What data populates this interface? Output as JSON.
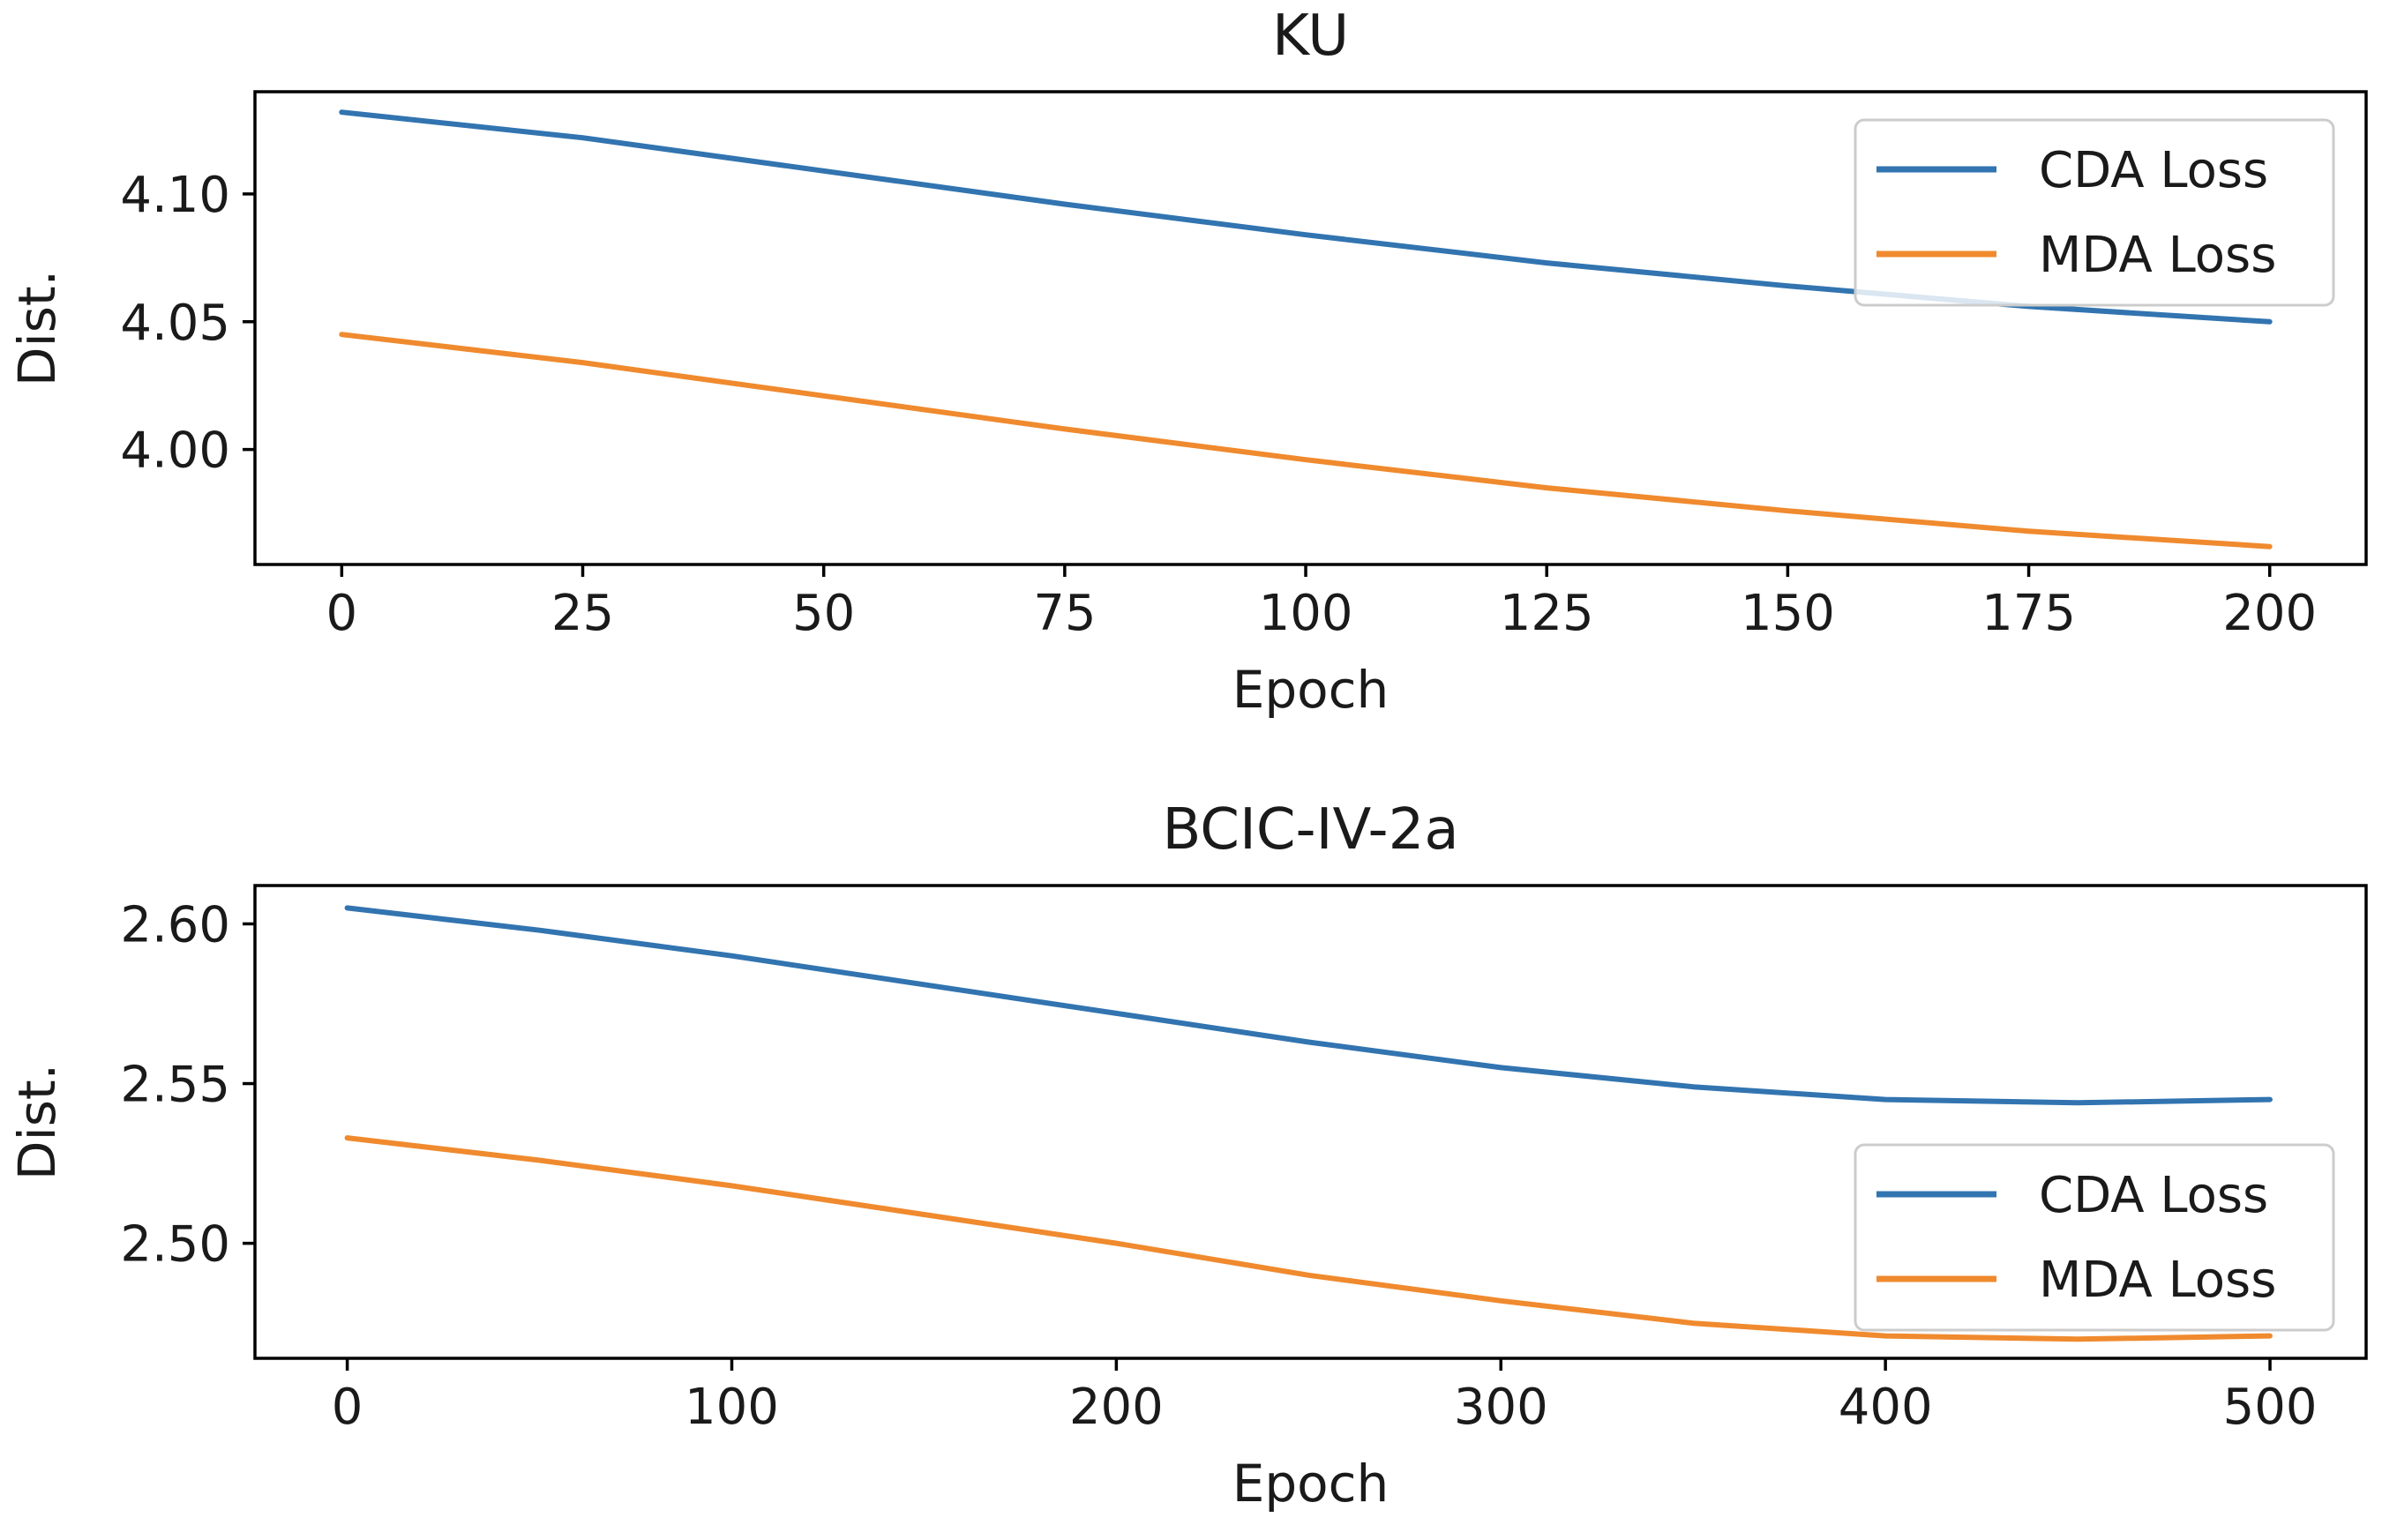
{
  "chart_data": [
    {
      "type": "line",
      "title": "KU",
      "xlabel": "Epoch",
      "ylabel": "Dist.",
      "xlim": [
        -9,
        210
      ],
      "ylim": [
        3.955,
        4.14
      ],
      "xticks": [
        0,
        25,
        50,
        75,
        100,
        125,
        150,
        175,
        200
      ],
      "xtick_labels": [
        "0",
        "25",
        "50",
        "75",
        "100",
        "125",
        "150",
        "175",
        "200"
      ],
      "yticks": [
        4.0,
        4.05,
        4.1
      ],
      "ytick_labels": [
        "4.00",
        "4.05",
        "4.10"
      ],
      "legend_position": "upper-right",
      "grid": false,
      "series": [
        {
          "name": "CDA Loss",
          "color": "#3274b0",
          "x": [
            0,
            25,
            50,
            75,
            100,
            125,
            150,
            175,
            200
          ],
          "y": [
            4.132,
            4.122,
            4.109,
            4.096,
            4.084,
            4.073,
            4.064,
            4.056,
            4.05
          ]
        },
        {
          "name": "MDA Loss",
          "color": "#f08a2e",
          "x": [
            0,
            25,
            50,
            75,
            100,
            125,
            150,
            175,
            200
          ],
          "y": [
            4.045,
            4.034,
            4.021,
            4.008,
            3.996,
            3.985,
            3.976,
            3.968,
            3.962
          ]
        }
      ]
    },
    {
      "type": "line",
      "title": "BCIC-IV-2a",
      "xlabel": "Epoch",
      "ylabel": "Dist.",
      "xlim": [
        -24,
        525
      ],
      "ylim": [
        2.464,
        2.612
      ],
      "xticks": [
        0,
        100,
        200,
        300,
        400,
        500
      ],
      "xtick_labels": [
        "0",
        "100",
        "200",
        "300",
        "400",
        "500"
      ],
      "yticks": [
        2.5,
        2.55,
        2.6
      ],
      "ytick_labels": [
        "2.50",
        "2.55",
        "2.60"
      ],
      "legend_position": "lower-right",
      "grid": false,
      "series": [
        {
          "name": "CDA Loss",
          "color": "#3274b0",
          "x": [
            0,
            50,
            100,
            150,
            200,
            250,
            300,
            350,
            400,
            450,
            500
          ],
          "y": [
            2.605,
            2.598,
            2.59,
            2.581,
            2.572,
            2.563,
            2.555,
            2.549,
            2.545,
            2.544,
            2.545
          ]
        },
        {
          "name": "MDA Loss",
          "color": "#f08a2e",
          "x": [
            0,
            50,
            100,
            150,
            200,
            250,
            300,
            350,
            400,
            450,
            500
          ],
          "y": [
            2.533,
            2.526,
            2.518,
            2.509,
            2.5,
            2.49,
            2.482,
            2.475,
            2.471,
            2.47,
            2.471
          ]
        }
      ]
    }
  ]
}
